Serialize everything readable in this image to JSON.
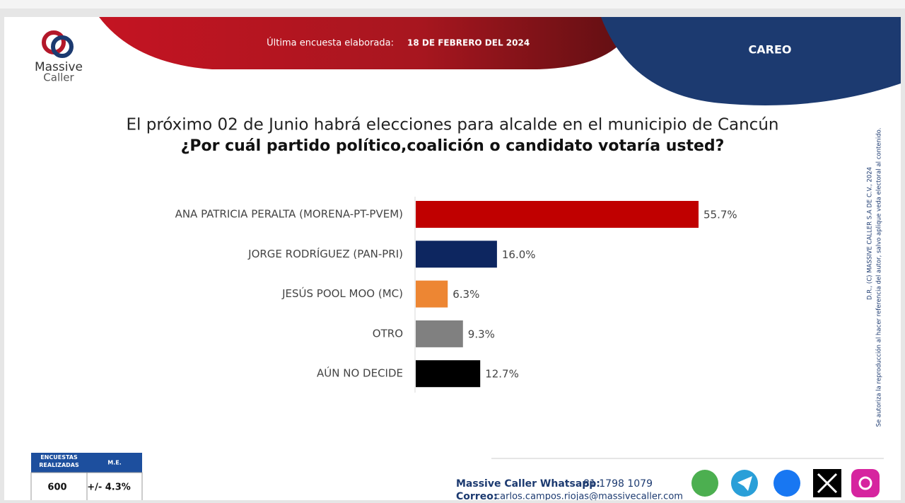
{
  "header": {
    "logo_top": "Massive",
    "logo_bottom": "Caller",
    "survey_label": "Última encuesta elaborada:",
    "survey_date": "18 DE FEBRERO DEL 2024",
    "tag": "CAREO"
  },
  "chart_data": {
    "type": "bar",
    "orientation": "horizontal",
    "title": "El próximo 02 de Junio habrá elecciones para alcalde en el municipio de Cancún",
    "subtitle": "¿Por cuál partido político,coalición o candidato votaría usted?",
    "categories": [
      "ANA PATRICIA PERALTA (MORENA-PT-PVEM)",
      "JORGE RODRÍGUEZ (PAN-PRI)",
      "JESÚS POOL MOO (MC)",
      "OTRO",
      "AÚN NO DECIDE"
    ],
    "values": [
      55.7,
      16.0,
      6.3,
      9.3,
      12.7
    ],
    "value_labels": [
      "55.7%",
      "16.0%",
      "6.3%",
      "9.3%",
      "12.7%"
    ],
    "colors": [
      "#c00000",
      "#0d2660",
      "#ed8633",
      "#808080",
      "#000000"
    ]
  },
  "legal": {
    "line1": "D.R., (C) MASSIVE CALLER S.A DE C.V., 2024",
    "line2": "Se autoriza la reproducción al hacer referencia del autor, salvo aplique veda electoral al contenido."
  },
  "table": {
    "headers": [
      "ENCUESTAS REALIZADAS",
      "M.E."
    ],
    "row": [
      "600",
      "+/- 4.3%"
    ]
  },
  "footer": {
    "whatsapp_label": "Massive Caller Whatsapp:",
    "whatsapp": "81 1798 1079",
    "email_label": "Correo:",
    "email": "carlos.campos.riojas@massivecaller.com"
  }
}
